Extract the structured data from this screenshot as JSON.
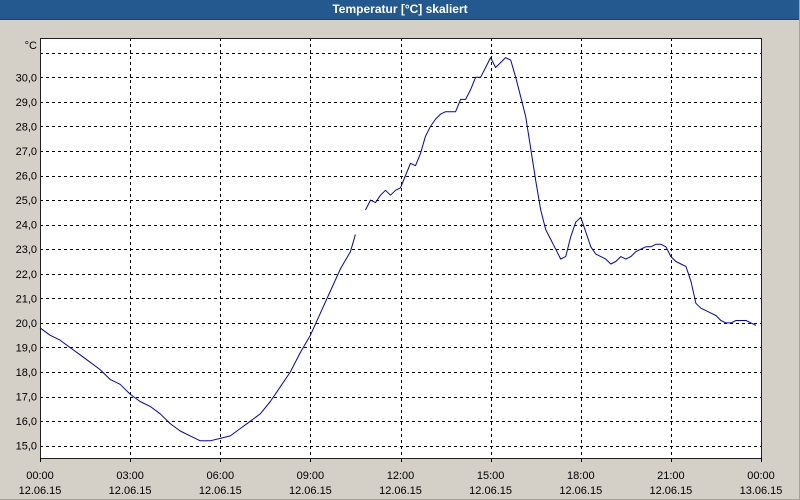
{
  "theme": {
    "window_bg": "#d4d0c8",
    "title_bar_bg": "#24598f",
    "title_text": "#ffffff",
    "plot_bg": "#ffffff",
    "grid": "#000000"
  },
  "chart_data": {
    "type": "line",
    "title": "Temperatur [°C] skaliert",
    "ylabel": "°C",
    "ylim": [
      14.5,
      31.6
    ],
    "xlim": [
      "12.06.15 00:00",
      "13.06.15 00:00"
    ],
    "grid": true,
    "y_ticks": [
      "15,0",
      "16,0",
      "17,0",
      "18,0",
      "19,0",
      "20,0",
      "21,0",
      "22,0",
      "23,0",
      "24,0",
      "25,0",
      "26,0",
      "27,0",
      "28,0",
      "29,0",
      "30,0"
    ],
    "x_ticks": [
      {
        "time": "00:00",
        "date": "12.06.15"
      },
      {
        "time": "03:00",
        "date": "12.06.15"
      },
      {
        "time": "06:00",
        "date": "12.06.15"
      },
      {
        "time": "09:00",
        "date": "12.06.15"
      },
      {
        "time": "12:00",
        "date": "12.06.15"
      },
      {
        "time": "15:00",
        "date": "12.06.15"
      },
      {
        "time": "18:00",
        "date": "12.06.15"
      },
      {
        "time": "21:00",
        "date": "12.06.15"
      },
      {
        "time": "00:00",
        "date": "13.06.15"
      }
    ],
    "x": [
      "12.06.15 00:00",
      "12.06.15 00:20",
      "12.06.15 00:40",
      "12.06.15 01:00",
      "12.06.15 01:20",
      "12.06.15 01:40",
      "12.06.15 02:00",
      "12.06.15 02:20",
      "12.06.15 02:40",
      "12.06.15 03:00",
      "12.06.15 03:20",
      "12.06.15 03:40",
      "12.06.15 04:00",
      "12.06.15 04:20",
      "12.06.15 04:40",
      "12.06.15 05:00",
      "12.06.15 05:20",
      "12.06.15 05:40",
      "12.06.15 06:00",
      "12.06.15 06:20",
      "12.06.15 06:40",
      "12.06.15 07:00",
      "12.06.15 07:20",
      "12.06.15 07:40",
      "12.06.15 08:00",
      "12.06.15 08:20",
      "12.06.15 08:40",
      "12.06.15 09:00",
      "12.06.15 09:20",
      "12.06.15 09:40",
      "12.06.15 10:00",
      "12.06.15 10:20",
      "12.06.15 10:30",
      "12.06.15 10:40",
      "12.06.15 10:50",
      "12.06.15 11:00",
      "12.06.15 11:10",
      "12.06.15 11:20",
      "12.06.15 11:30",
      "12.06.15 11:40",
      "12.06.15 11:50",
      "12.06.15 12:00",
      "12.06.15 12:10",
      "12.06.15 12:20",
      "12.06.15 12:30",
      "12.06.15 12:40",
      "12.06.15 12:50",
      "12.06.15 13:00",
      "12.06.15 13:10",
      "12.06.15 13:20",
      "12.06.15 13:30",
      "12.06.15 13:40",
      "12.06.15 13:50",
      "12.06.15 14:00",
      "12.06.15 14:10",
      "12.06.15 14:20",
      "12.06.15 14:30",
      "12.06.15 14:40",
      "12.06.15 14:50",
      "12.06.15 15:00",
      "12.06.15 15:10",
      "12.06.15 15:20",
      "12.06.15 15:30",
      "12.06.15 15:40",
      "12.06.15 15:50",
      "12.06.15 16:00",
      "12.06.15 16:10",
      "12.06.15 16:20",
      "12.06.15 16:30",
      "12.06.15 16:40",
      "12.06.15 16:50",
      "12.06.15 17:00",
      "12.06.15 17:10",
      "12.06.15 17:20",
      "12.06.15 17:30",
      "12.06.15 17:40",
      "12.06.15 17:50",
      "12.06.15 18:00",
      "12.06.15 18:10",
      "12.06.15 18:20",
      "12.06.15 18:30",
      "12.06.15 18:40",
      "12.06.15 18:50",
      "12.06.15 19:00",
      "12.06.15 19:10",
      "12.06.15 19:20",
      "12.06.15 19:30",
      "12.06.15 19:40",
      "12.06.15 19:50",
      "12.06.15 20:00",
      "12.06.15 20:10",
      "12.06.15 20:20",
      "12.06.15 20:30",
      "12.06.15 20:40",
      "12.06.15 20:50",
      "12.06.15 21:00",
      "12.06.15 21:10",
      "12.06.15 21:20",
      "12.06.15 21:30",
      "12.06.15 21:40",
      "12.06.15 21:50",
      "12.06.15 22:00",
      "12.06.15 22:10",
      "12.06.15 22:20",
      "12.06.15 22:30",
      "12.06.15 22:40",
      "12.06.15 22:50",
      "12.06.15 23:00",
      "12.06.15 23:10",
      "12.06.15 23:20",
      "12.06.15 23:30",
      "12.06.15 23:40",
      "12.06.15 23:50"
    ],
    "series": [
      {
        "color": "#0000cc",
        "values": [
          19.8,
          19.5,
          19.3,
          19.0,
          18.7,
          18.4,
          18.1,
          17.7,
          17.5,
          17.1,
          16.8,
          16.6,
          16.3,
          15.9,
          15.6,
          15.4,
          15.2,
          15.2,
          15.3,
          15.4,
          15.7,
          16.0,
          16.3,
          16.8,
          17.4,
          18.0,
          18.8,
          19.5,
          20.4,
          21.3,
          22.2,
          22.9,
          23.6,
          null,
          24.6,
          25.0,
          24.9,
          25.2,
          25.4,
          25.2,
          25.4,
          25.5,
          26.0,
          26.5,
          26.4,
          26.9,
          27.6,
          28.0,
          28.3,
          28.5,
          28.6,
          28.6,
          28.6,
          29.1,
          29.1,
          29.5,
          30.0,
          30.0,
          30.4,
          30.8,
          30.4,
          30.6,
          30.8,
          30.7,
          30.0,
          29.2,
          28.4,
          27.1,
          25.8,
          24.6,
          23.8,
          23.4,
          23.0,
          22.6,
          22.7,
          23.5,
          24.1,
          24.3,
          23.7,
          23.1,
          22.8,
          22.7,
          22.6,
          22.4,
          22.5,
          22.7,
          22.6,
          22.7,
          22.9,
          23.0,
          23.1,
          23.1,
          23.2,
          23.2,
          23.1,
          22.7,
          22.5,
          22.4,
          22.3,
          21.7,
          20.8,
          20.6,
          20.5,
          20.4,
          20.3,
          20.1,
          20.0,
          20.0,
          20.1,
          20.1,
          20.1,
          20.0,
          19.9
        ]
      }
    ]
  }
}
